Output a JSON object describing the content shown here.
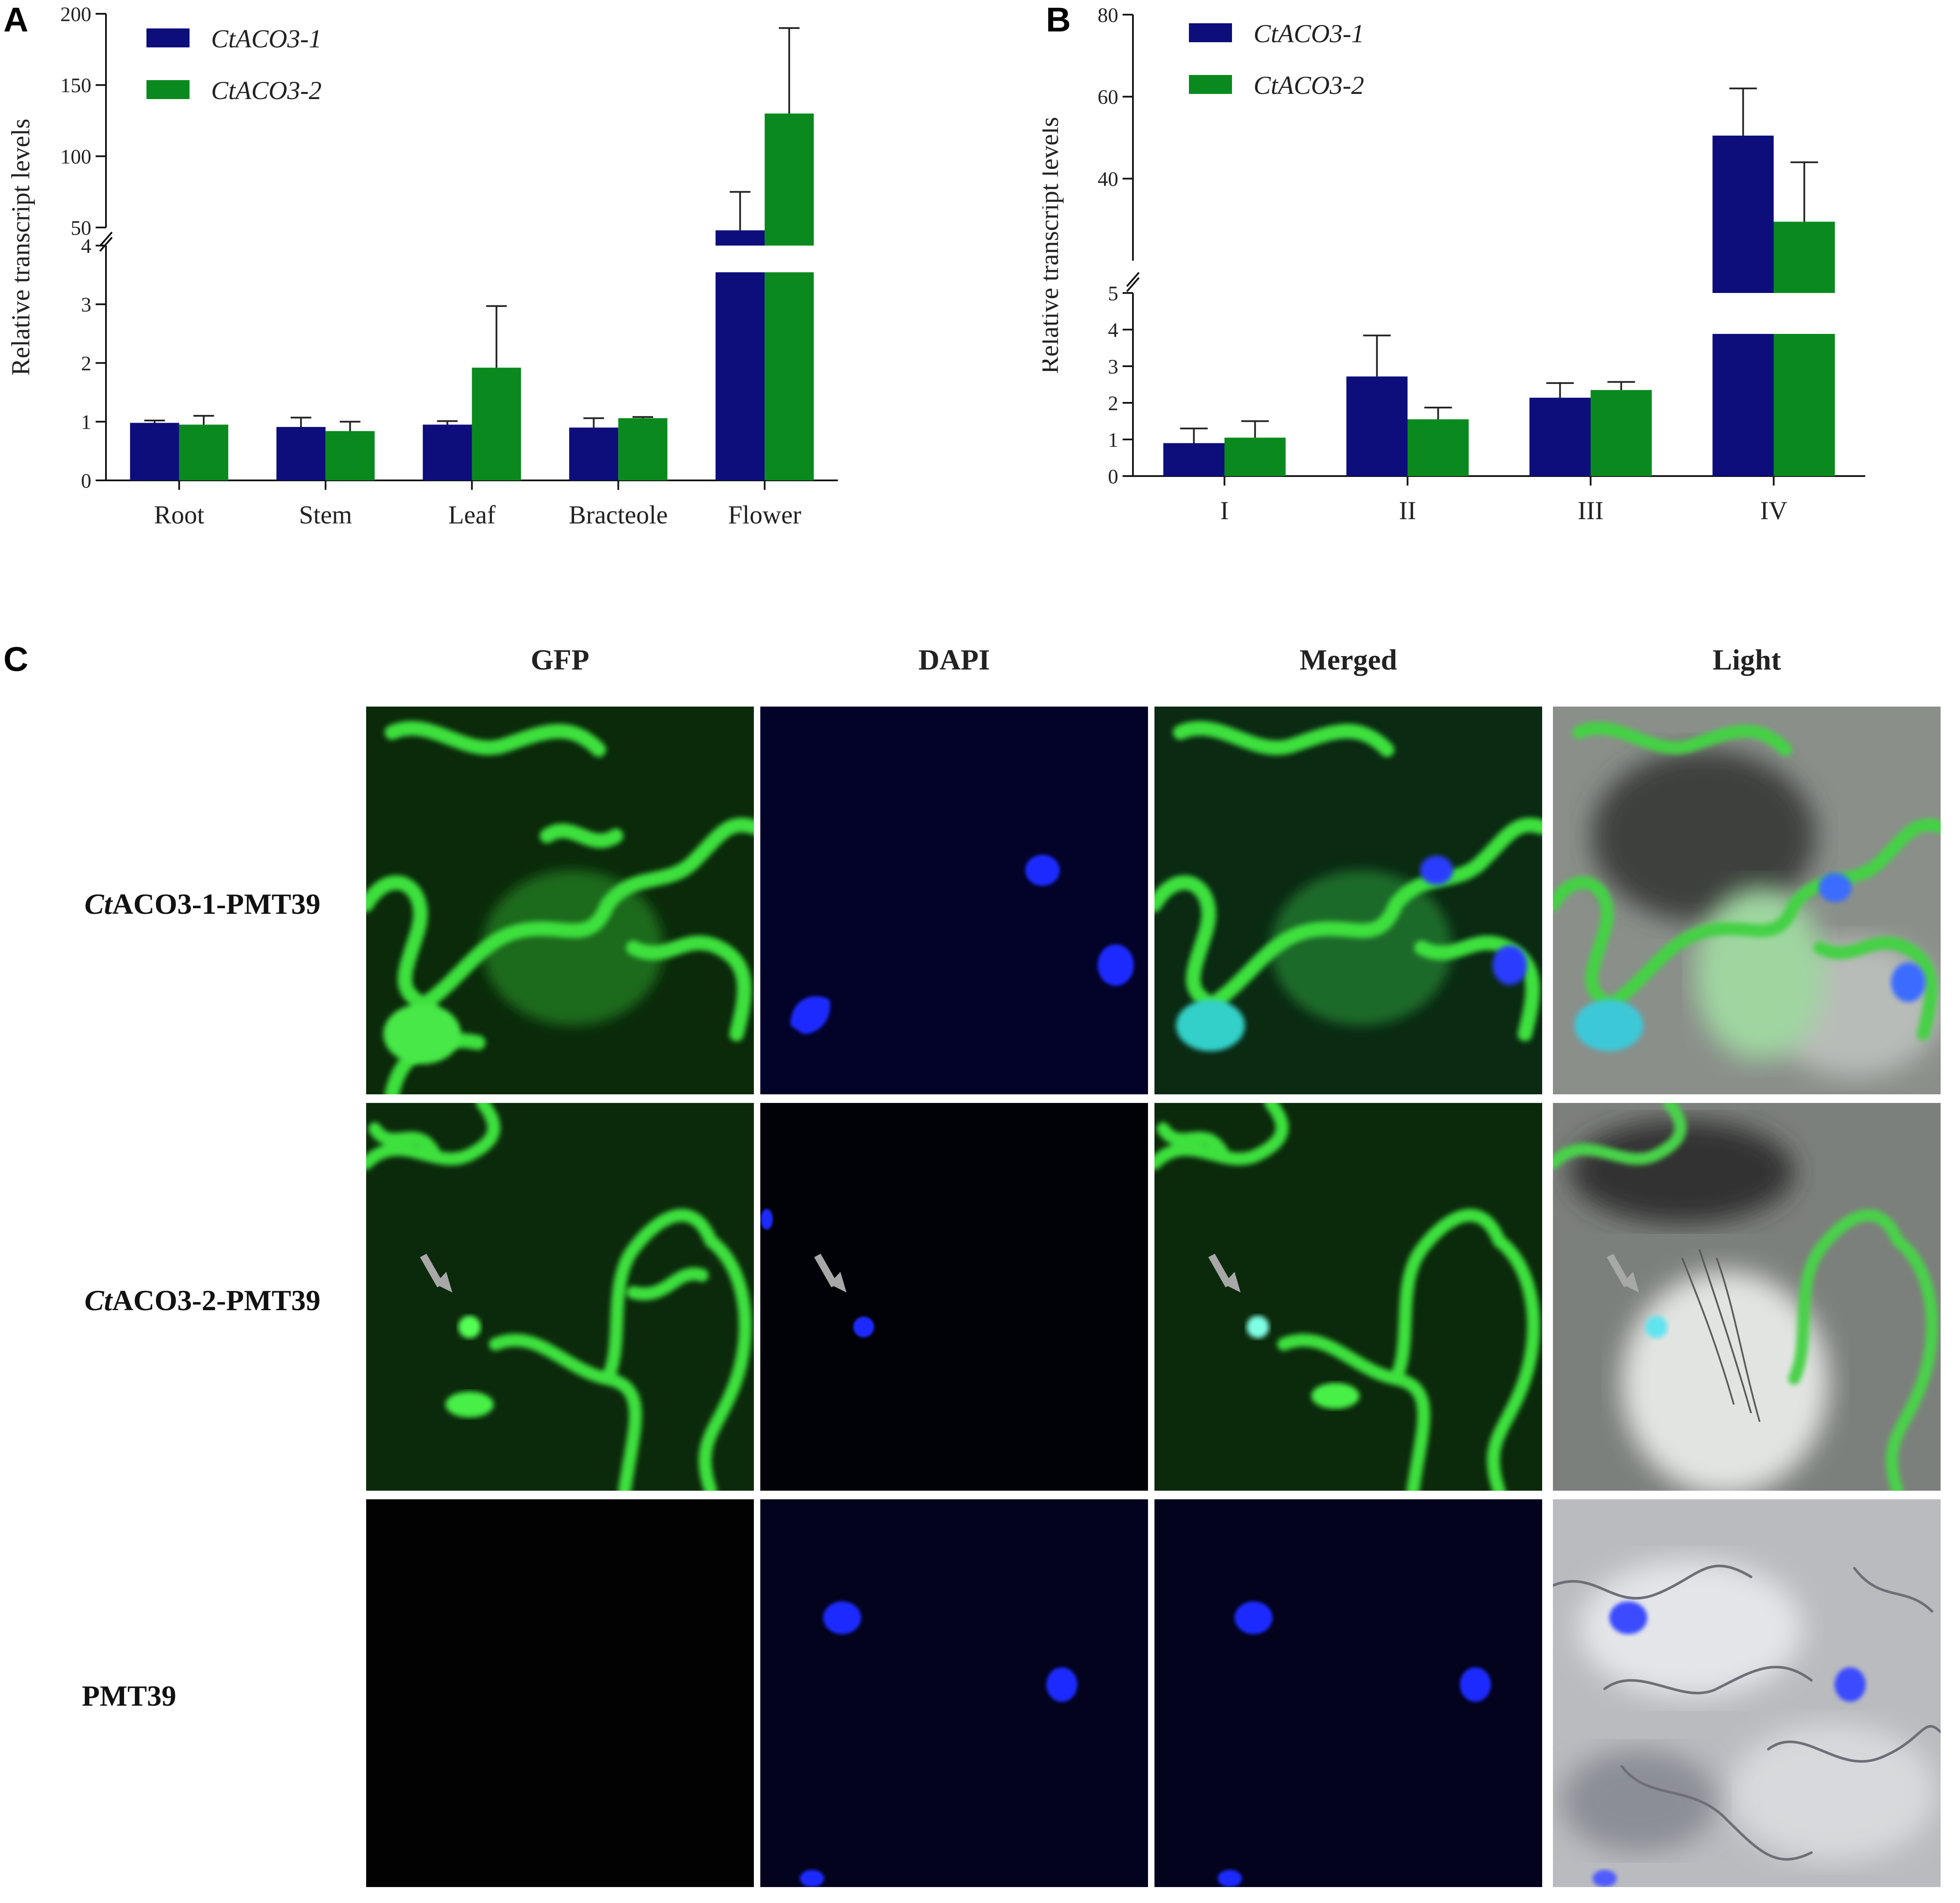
{
  "panel_a": {
    "letter": "A",
    "legend": [
      "CtACO3-1",
      "CtACO3-2"
    ]
  },
  "panel_b": {
    "letter": "B",
    "legend": [
      "CtACO3-1",
      "CtACO3-2"
    ]
  },
  "panel_c": {
    "letter": "C",
    "columns": [
      "GFP",
      "DAPI",
      "Merged",
      "Light"
    ],
    "rows": [
      {
        "italic": "Ct",
        "rest": "ACO3-1-PMT39"
      },
      {
        "italic": "Ct",
        "rest": "ACO3-2-PMT39"
      },
      {
        "italic": "",
        "rest": "PMT39"
      }
    ]
  },
  "colors": {
    "series1": "#0d0d7c",
    "series2": "#0a8a1e"
  },
  "chart_data": [
    {
      "type": "bar",
      "panel": "A",
      "title": "",
      "xlabel": "",
      "ylabel": "Relative transcript levels",
      "categories": [
        "Root",
        "Stem",
        "Leaf",
        "Bracteole",
        "Flower"
      ],
      "series": [
        {
          "name": "CtACO3-1",
          "values": [
            0.98,
            0.91,
            0.95,
            0.9,
            48
          ],
          "errors": [
            0.04,
            0.16,
            0.06,
            0.16,
            27
          ]
        },
        {
          "name": "CtACO3-2",
          "values": [
            0.95,
            0.84,
            1.92,
            1.06,
            130
          ],
          "errors": [
            0.15,
            0.16,
            1.05,
            0.02,
            60
          ]
        }
      ],
      "axis_break": true,
      "lower_segment": {
        "ylim": [
          0,
          4
        ],
        "ticks": [
          "0",
          "1",
          "2",
          "3",
          "4"
        ]
      },
      "upper_segment": {
        "ylim": [
          50,
          200
        ],
        "ticks": [
          "50",
          "100",
          "150",
          "200"
        ]
      },
      "legend_position": "top-left"
    },
    {
      "type": "bar",
      "panel": "B",
      "title": "",
      "xlabel": "",
      "ylabel": "Relative transcript levels",
      "categories": [
        "I",
        "II",
        "III",
        "IV"
      ],
      "series": [
        {
          "name": "CtACO3-1",
          "values": [
            0.9,
            2.72,
            2.14,
            50.5
          ],
          "errors": [
            0.4,
            1.12,
            0.4,
            11.5
          ]
        },
        {
          "name": "CtACO3-2",
          "values": [
            1.05,
            1.55,
            2.35,
            29.5
          ],
          "errors": [
            0.45,
            0.32,
            0.22,
            14.5
          ]
        }
      ],
      "axis_break": true,
      "lower_segment": {
        "ylim": [
          0,
          5
        ],
        "ticks": [
          "0",
          "1",
          "2",
          "3",
          "4",
          "5"
        ]
      },
      "upper_segment": {
        "ylim": [
          20,
          80
        ],
        "ticks": [
          "40",
          "60",
          "80"
        ]
      },
      "legend_position": "top-left"
    }
  ]
}
